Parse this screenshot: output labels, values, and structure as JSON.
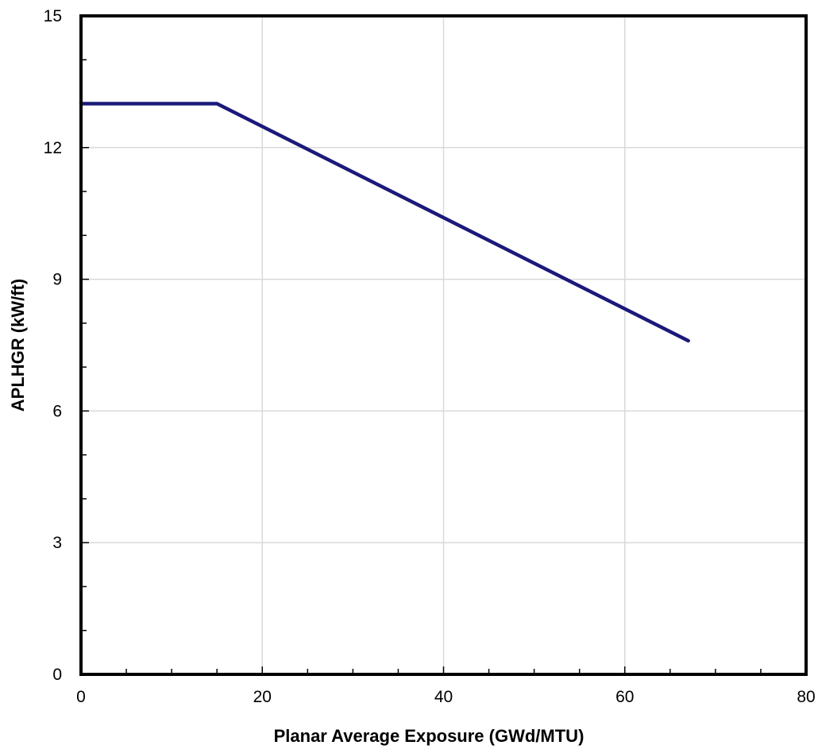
{
  "chart_data": {
    "type": "line",
    "xlabel": "Planar Average Exposure  (GWd/MTU)",
    "ylabel": "APLHGR  (kW/ft)",
    "xlim": [
      0,
      80
    ],
    "ylim": [
      0,
      15
    ],
    "x_ticks": [
      0,
      20,
      40,
      60,
      80
    ],
    "y_ticks": [
      0,
      3,
      6,
      9,
      12,
      15
    ],
    "x_minor_step": 5,
    "y_minor_step": 1,
    "grid": true,
    "series": [
      {
        "color": "#1a1a7a",
        "points": [
          {
            "x": 0,
            "y": 13.0
          },
          {
            "x": 15,
            "y": 13.0
          },
          {
            "x": 67,
            "y": 7.6
          }
        ]
      }
    ]
  }
}
